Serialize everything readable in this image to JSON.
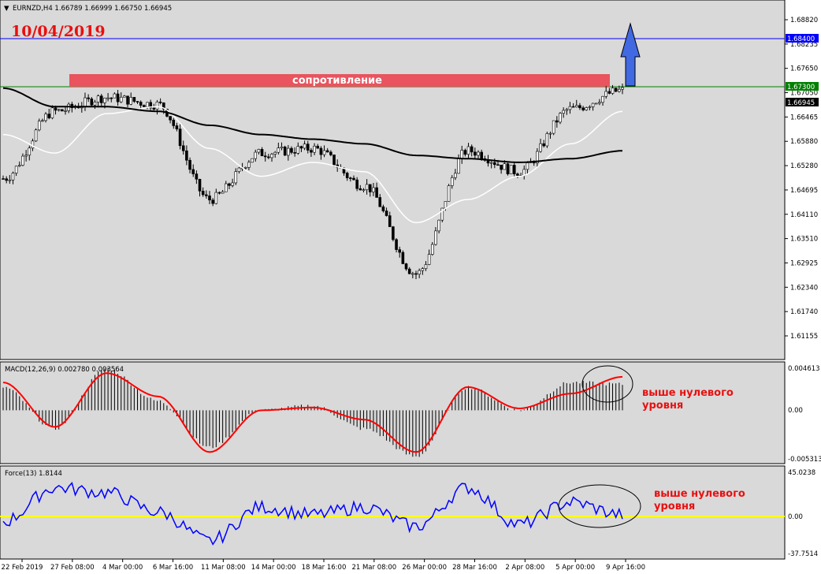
{
  "header": {
    "symbol_info": "EURNZD,H4  1.66789 1.66999 1.66750 1.66945"
  },
  "date_label": "10/04/2019",
  "resistance_label": "сопротивление",
  "price_panel": {
    "ticks": [
      "1.68820",
      "1.68235",
      "1.67650",
      "1.67050",
      "1.66465",
      "1.65880",
      "1.65280",
      "1.64695",
      "1.64110",
      "1.63510",
      "1.62925",
      "1.62340",
      "1.61740",
      "1.61155"
    ],
    "level_blue": "1.68400",
    "level_green": "1.67300",
    "current_price": "1.66945"
  },
  "macd_panel": {
    "label": "MACD(12,26,9) 0.002780 0.003564",
    "ticks": [
      "0.004613",
      "0.00",
      "-0.005313"
    ],
    "annotation_line1": "выше нулевого",
    "annotation_line2": "уровня"
  },
  "force_panel": {
    "label": "Force(13) 1.8144",
    "ticks": [
      "45.0238",
      "0.00",
      "-37.7514"
    ],
    "annotation_line1": "выше нулевого",
    "annotation_line2": "уровня"
  },
  "time_axis": [
    "22 Feb 2019",
    "27 Feb 08:00",
    "4 Mar 00:00",
    "6 Mar 16:00",
    "11 Mar 08:00",
    "14 Mar 00:00",
    "18 Mar 16:00",
    "21 Mar 08:00",
    "26 Mar 00:00",
    "28 Mar 16:00",
    "2 Apr 08:00",
    "5 Apr 00:00",
    "9 Apr 16:00"
  ],
  "colors": {
    "background": "#d9d9d9",
    "candles": "#000000",
    "ma_fast": "#ffffff",
    "ma_slow": "#000000",
    "macd_signal": "#ff0000",
    "force_line": "#0000ff",
    "zero_line_force": "#ffff00",
    "level_blue": "#0000ff",
    "level_green": "#008000",
    "resistance_zone": "#e9545f",
    "arrow": "#4169e1"
  },
  "chart_data": [
    {
      "type": "candlestick",
      "title": "EURNZD,H4",
      "ylim": [
        1.6115,
        1.689
      ],
      "x": [
        "22 Feb 2019",
        "27 Feb 08:00",
        "4 Mar 00:00",
        "6 Mar 16:00",
        "11 Mar 08:00",
        "14 Mar 00:00",
        "18 Mar 16:00",
        "21 Mar 08:00",
        "26 Mar 00:00",
        "28 Mar 16:00",
        "2 Apr 08:00",
        "5 Apr 00:00",
        "9 Apr 16:00"
      ],
      "close": [
        1.6505,
        1.665,
        1.668,
        1.6665,
        1.646,
        1.656,
        1.657,
        1.649,
        1.63,
        1.6565,
        1.652,
        1.6655,
        1.6695
      ],
      "ma_fast": [
        1.66,
        1.656,
        1.6645,
        1.666,
        1.657,
        1.651,
        1.654,
        1.652,
        1.641,
        1.646,
        1.651,
        1.658,
        1.665
      ],
      "ma_slow": [
        1.67,
        1.666,
        1.666,
        1.665,
        1.662,
        1.66,
        1.659,
        1.658,
        1.6555,
        1.6548,
        1.654,
        1.6548,
        1.6565
      ],
      "levels": [
        1.684,
        1.673
      ],
      "resistance_zone": [
        1.673,
        1.6744
      ]
    },
    {
      "type": "bar",
      "title": "MACD(12,26,9) 0.002780 0.003564",
      "ylim": [
        -0.005313,
        0.004613
      ],
      "x": [
        "22 Feb 2019",
        "27 Feb 08:00",
        "4 Mar 00:00",
        "6 Mar 16:00",
        "11 Mar 08:00",
        "14 Mar 00:00",
        "18 Mar 16:00",
        "21 Mar 08:00",
        "26 Mar 00:00",
        "28 Mar 16:00",
        "2 Apr 08:00",
        "5 Apr 00:00",
        "9 Apr 16:00"
      ],
      "histogram": [
        0.0025,
        -0.002,
        0.0045,
        0.001,
        -0.004,
        0.0,
        0.0005,
        -0.002,
        -0.005,
        0.0025,
        0.0,
        0.003,
        0.0028
      ],
      "signal": [
        0.003,
        -0.0018,
        0.004,
        0.0015,
        -0.0045,
        0.0,
        0.0003,
        -0.001,
        -0.0045,
        0.0025,
        0.0002,
        0.0018,
        0.0036
      ]
    },
    {
      "type": "line",
      "title": "Force(13) 1.8144",
      "ylim": [
        -37.7514,
        45.0238
      ],
      "x": [
        "22 Feb 2019",
        "27 Feb 08:00",
        "4 Mar 00:00",
        "6 Mar 16:00",
        "11 Mar 08:00",
        "14 Mar 00:00",
        "18 Mar 16:00",
        "21 Mar 08:00",
        "26 Mar 00:00",
        "28 Mar 16:00",
        "2 Apr 08:00",
        "5 Apr 00:00",
        "9 Apr 16:00"
      ],
      "series": [
        {
          "values": [
            -5,
            30,
            25,
            5,
            -25,
            10,
            2,
            10,
            -10,
            30,
            -8,
            15,
            2
          ]
        }
      ]
    }
  ]
}
